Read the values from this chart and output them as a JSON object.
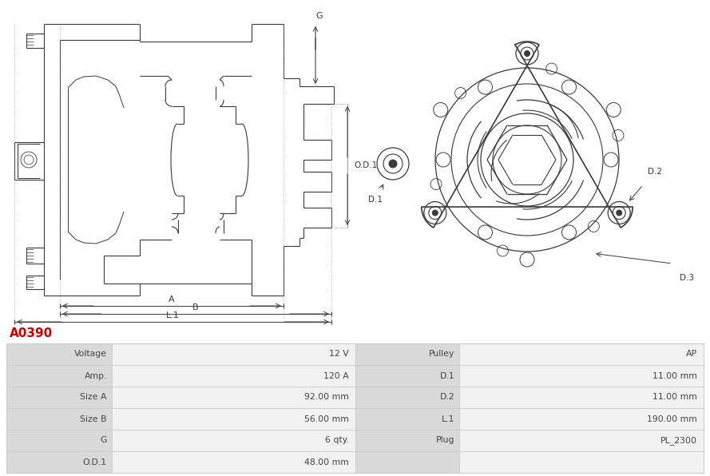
{
  "title": "A0390",
  "title_color": "#cc0000",
  "background_color": "#ffffff",
  "table_label_bg": "#d9d9d9",
  "table_value_bg": "#f2f2f2",
  "table_border_color": "#cccccc",
  "specs": [
    [
      "Voltage",
      "12 V",
      "Pulley",
      "AP"
    ],
    [
      "Amp.",
      "120 A",
      "D.1",
      "11.00 mm"
    ],
    [
      "Size A",
      "92.00 mm",
      "D.2",
      "11.00 mm"
    ],
    [
      "Size B",
      "56.00 mm",
      "L.1",
      "190.00 mm"
    ],
    [
      "G",
      "6 qty.",
      "Plug",
      "PL_2300"
    ],
    [
      "O.D.1",
      "48.00 mm",
      "",
      ""
    ]
  ],
  "line_color": "#3a3a3a",
  "dim_color": "#3a3a3a"
}
